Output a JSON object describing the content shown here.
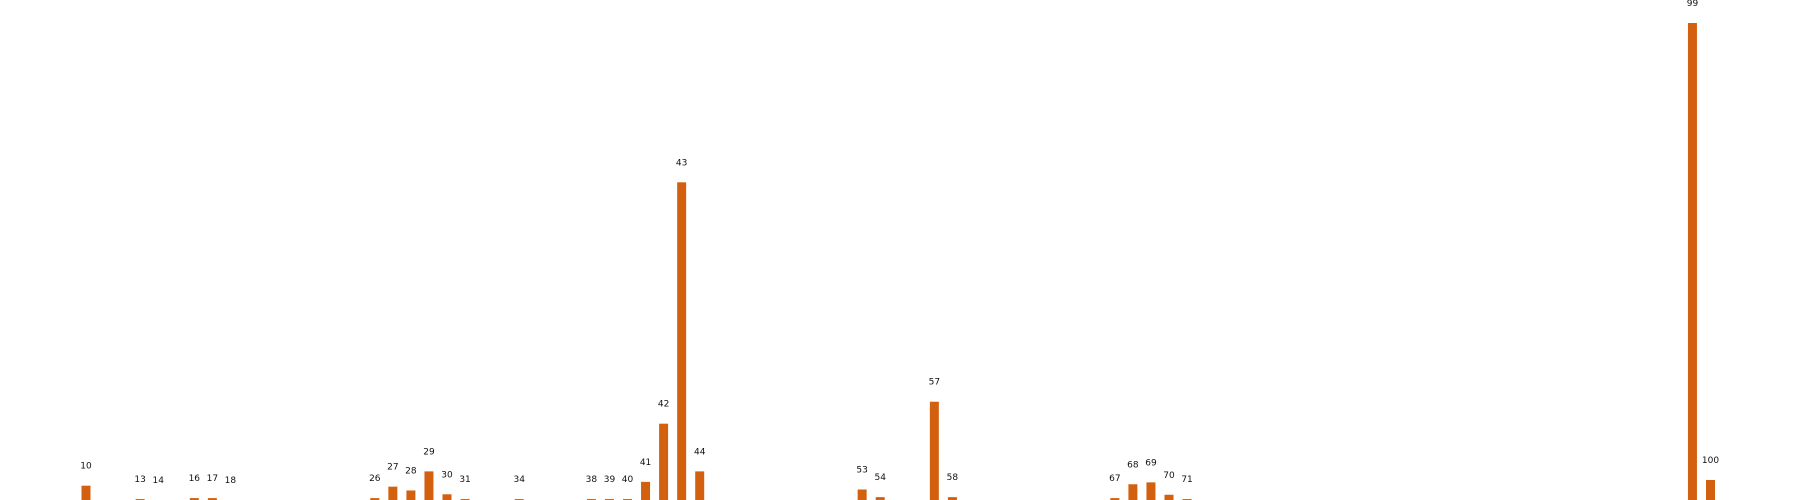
{
  "chart_data": {
    "type": "bar",
    "title": "",
    "xlabel": "",
    "ylabel": "",
    "grid": false,
    "legend": "none",
    "bar_color": "#D2600F",
    "ylim": [
      0,
      1.0
    ],
    "bars": [
      {
        "label": "10",
        "x": 10,
        "value": 0.03
      },
      {
        "label": "13",
        "x": 13,
        "value": 0.002
      },
      {
        "label": "14",
        "x": 14,
        "value": 0.0
      },
      {
        "label": "16",
        "x": 16,
        "value": 0.004
      },
      {
        "label": "17",
        "x": 17,
        "value": 0.004
      },
      {
        "label": "18",
        "x": 18,
        "value": 0.0
      },
      {
        "label": "26",
        "x": 26,
        "value": 0.004
      },
      {
        "label": "27",
        "x": 27,
        "value": 0.028
      },
      {
        "label": "28",
        "x": 28,
        "value": 0.02
      },
      {
        "label": "29",
        "x": 29,
        "value": 0.06
      },
      {
        "label": "30",
        "x": 30,
        "value": 0.012
      },
      {
        "label": "31",
        "x": 31,
        "value": 0.002
      },
      {
        "label": "34",
        "x": 34,
        "value": 0.002
      },
      {
        "label": "38",
        "x": 38,
        "value": 0.002
      },
      {
        "label": "39",
        "x": 39,
        "value": 0.002
      },
      {
        "label": "40",
        "x": 40,
        "value": 0.002
      },
      {
        "label": "41",
        "x": 41,
        "value": 0.038
      },
      {
        "label": "42",
        "x": 42,
        "value": 0.16
      },
      {
        "label": "43",
        "x": 43,
        "value": 0.666
      },
      {
        "label": "44",
        "x": 44,
        "value": 0.06
      },
      {
        "label": "53",
        "x": 53,
        "value": 0.022
      },
      {
        "label": "54",
        "x": 54,
        "value": 0.006
      },
      {
        "label": "57",
        "x": 57,
        "value": 0.206
      },
      {
        "label": "58",
        "x": 58,
        "value": 0.006
      },
      {
        "label": "67",
        "x": 67,
        "value": 0.004
      },
      {
        "label": "68",
        "x": 68,
        "value": 0.033
      },
      {
        "label": "69",
        "x": 69,
        "value": 0.037
      },
      {
        "label": "70",
        "x": 70,
        "value": 0.011
      },
      {
        "label": "71",
        "x": 71,
        "value": 0.002
      },
      {
        "label": "99",
        "x": 99,
        "value": 1.0
      },
      {
        "label": "100",
        "x": 100,
        "value": 0.042
      }
    ]
  }
}
